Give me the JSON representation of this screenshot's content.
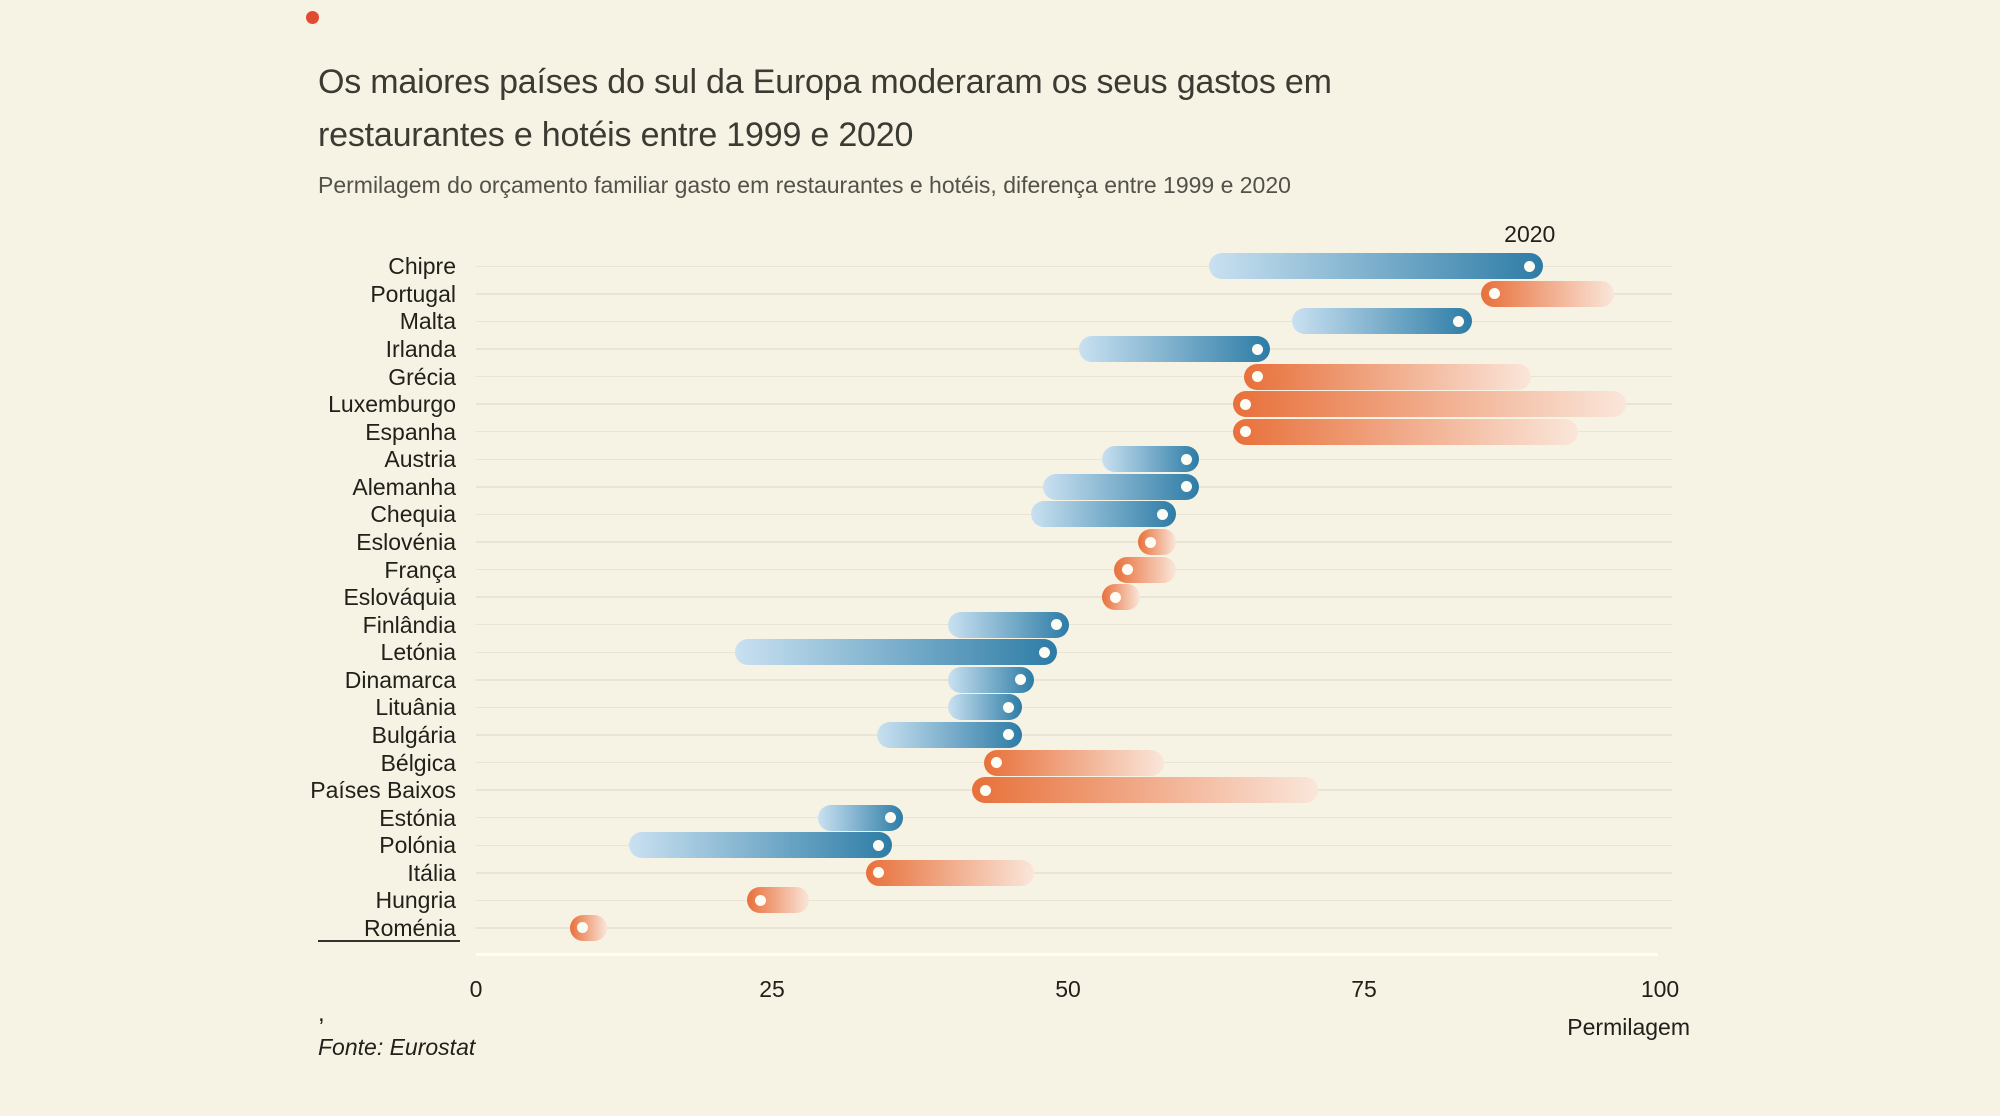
{
  "page": {
    "background_color": "#f7f3e4"
  },
  "header": {
    "title_line1": "Os maiores países do sul da Europa moderaram os seus gastos em",
    "title_line2": "restaurantes e hotéis entre 1999 e 2020",
    "subtitle": "Permilagem do orçamento familiar gasto em restaurantes e hotéis, diferença entre 1999 e 2020"
  },
  "footer": {
    "comma": ",",
    "source": "Fonte: Eurostat"
  },
  "chart_data": {
    "type": "dumbbell",
    "title": "Os maiores países do sul da Europa moderaram os seus gastos em restaurantes e hotéis entre 1999 e 2020",
    "subtitle": "Permilagem do orçamento familiar gasto em restaurantes e hotéis, diferença entre 1999 e 2020",
    "annotation": "2020",
    "annotation_meaning": "dot marks the 2020 value; faded tail marks the 1999 value",
    "xlabel": "Permilagem",
    "xlim": [
      0,
      100
    ],
    "x_ticks": [
      0,
      25,
      50,
      75,
      100
    ],
    "grid": true,
    "colors": {
      "background": "#f7f3e4",
      "increase_gradient_tail": "#c9e1f1",
      "increase_gradient_head": "#2d7ca6",
      "decrease_gradient_head": "#e8703a",
      "decrease_gradient_tail": "#fae6da",
      "endpoint_dot": "#fdfcf5",
      "gridline": "#eae5d3",
      "brand_dot": "#e14b32"
    },
    "series": [
      {
        "name": "Chipre",
        "v1999": 63,
        "v2020": 89
      },
      {
        "name": "Portugal",
        "v1999": 95,
        "v2020": 86
      },
      {
        "name": "Malta",
        "v1999": 70,
        "v2020": 83
      },
      {
        "name": "Irlanda",
        "v1999": 52,
        "v2020": 66
      },
      {
        "name": "Grécia",
        "v1999": 88,
        "v2020": 66
      },
      {
        "name": "Luxemburgo",
        "v1999": 96,
        "v2020": 65
      },
      {
        "name": "Espanha",
        "v1999": 92,
        "v2020": 65
      },
      {
        "name": "Austria",
        "v1999": 54,
        "v2020": 60
      },
      {
        "name": "Alemanha",
        "v1999": 49,
        "v2020": 60
      },
      {
        "name": "Chequia",
        "v1999": 48,
        "v2020": 58
      },
      {
        "name": "Eslovénia",
        "v1999": 58,
        "v2020": 57
      },
      {
        "name": "França",
        "v1999": 58,
        "v2020": 55
      },
      {
        "name": "Eslováquia",
        "v1999": 55,
        "v2020": 54
      },
      {
        "name": "Finlândia",
        "v1999": 41,
        "v2020": 49
      },
      {
        "name": "Letónia",
        "v1999": 23,
        "v2020": 48
      },
      {
        "name": "Dinamarca",
        "v1999": 41,
        "v2020": 46
      },
      {
        "name": "Lituânia",
        "v1999": 41,
        "v2020": 45
      },
      {
        "name": "Bulgária",
        "v1999": 35,
        "v2020": 45
      },
      {
        "name": "Bélgica",
        "v1999": 57,
        "v2020": 44
      },
      {
        "name": "Países Baixos",
        "v1999": 70,
        "v2020": 43
      },
      {
        "name": "Estónia",
        "v1999": 30,
        "v2020": 35
      },
      {
        "name": "Polónia",
        "v1999": 14,
        "v2020": 34
      },
      {
        "name": "Itália",
        "v1999": 46,
        "v2020": 34
      },
      {
        "name": "Hungria",
        "v1999": 27,
        "v2020": 24
      },
      {
        "name": "Roménia",
        "v1999": 10,
        "v2020": 9
      }
    ]
  }
}
